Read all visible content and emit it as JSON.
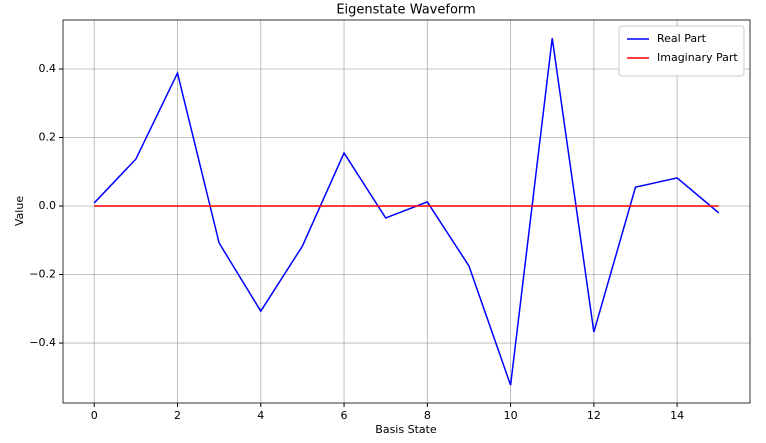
{
  "chart_data": {
    "type": "line",
    "title": "Eigenstate Waveform",
    "x_label": "Basis State",
    "y_label": "Value",
    "x": [
      0,
      1,
      2,
      3,
      4,
      5,
      6,
      7,
      8,
      9,
      10,
      11,
      12,
      13,
      14,
      15
    ],
    "series": [
      {
        "name": "Real Part",
        "color": "#0000ff",
        "values": [
          0.009,
          0.137,
          0.388,
          -0.108,
          -0.307,
          -0.117,
          0.155,
          -0.035,
          0.012,
          -0.175,
          -0.523,
          0.49,
          -0.368,
          0.055,
          0.082,
          -0.02
        ]
      },
      {
        "name": "Imaginary Part",
        "color": "#ff0000",
        "values": [
          0,
          0,
          0,
          0,
          0,
          0,
          0,
          0,
          0,
          0,
          0,
          0,
          0,
          0,
          0,
          0
        ]
      }
    ],
    "xlim": [
      -0.75,
      15.75
    ],
    "ylim": [
      -0.575,
      0.543
    ],
    "xticks": [
      0,
      2,
      4,
      6,
      8,
      10,
      12,
      14
    ],
    "yticks": [
      {
        "value": -0.4,
        "label": "−0.4"
      },
      {
        "value": -0.2,
        "label": "−0.2"
      },
      {
        "value": 0,
        "label": "0.0"
      },
      0.2,
      0.4
    ],
    "grid": true,
    "legend": "upper right"
  }
}
